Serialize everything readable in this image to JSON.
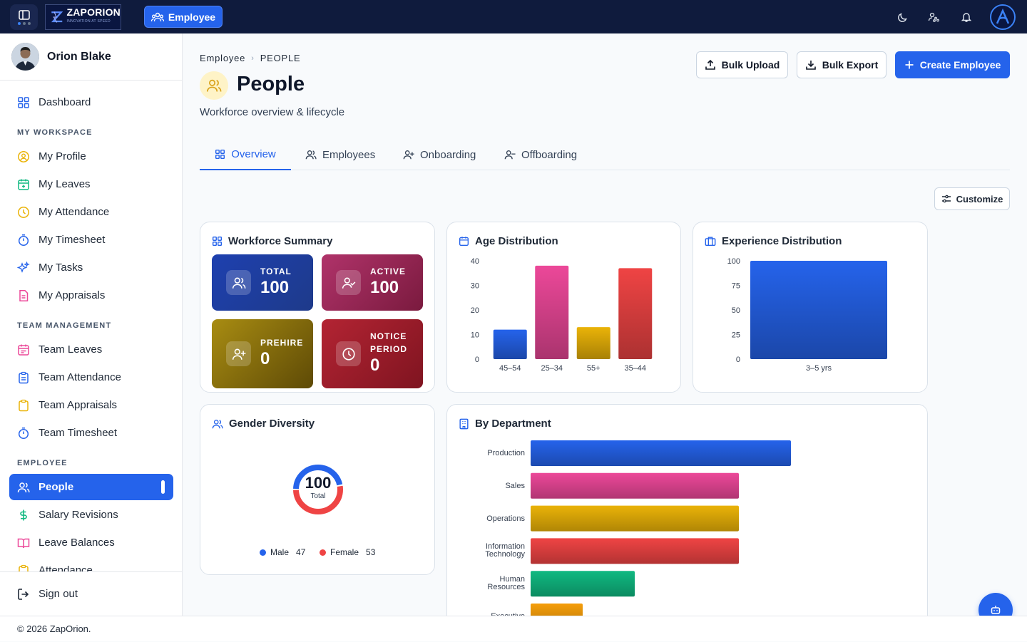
{
  "topbar": {
    "logo_text": "ZAPORION",
    "logo_tagline": "INNOVATION AT SPEED",
    "module_chip": "Employee",
    "icons": [
      "moon-icon",
      "user-nodes-icon",
      "bell-icon"
    ]
  },
  "sidebar": {
    "user_name": "Orion Blake",
    "dashboard": "Dashboard",
    "sections": [
      {
        "heading": "MY WORKSPACE",
        "items": [
          "My Profile",
          "My Leaves",
          "My Attendance",
          "My Timesheet",
          "My Tasks",
          "My Appraisals"
        ]
      },
      {
        "heading": "TEAM MANAGEMENT",
        "items": [
          "Team Leaves",
          "Team Attendance",
          "Team Appraisals",
          "Team Timesheet"
        ]
      },
      {
        "heading": "EMPLOYEE",
        "items": [
          "People",
          "Salary Revisions",
          "Leave Balances",
          "Attendance"
        ]
      }
    ],
    "active_item": "People",
    "sign_out": "Sign out"
  },
  "page": {
    "breadcrumb": [
      "Employee",
      "PEOPLE"
    ],
    "title": "People",
    "subtitle": "Workforce overview & lifecycle",
    "buttons": {
      "bulk_upload": "Bulk Upload",
      "bulk_export": "Bulk Export",
      "create": "Create Employee"
    },
    "tabs": [
      "Overview",
      "Employees",
      "Onboarding",
      "Offboarding"
    ],
    "active_tab": "Overview",
    "customize": "Customize"
  },
  "workforce_summary": {
    "title": "Workforce Summary",
    "tiles": [
      {
        "label": "TOTAL",
        "value": "100",
        "color": "#1e3a8a"
      },
      {
        "label": "ACTIVE",
        "value": "100",
        "color": "#9d2452"
      },
      {
        "label": "PREHIRE",
        "value": "0",
        "color": "#8a6d0b"
      },
      {
        "label": "NOTICE PERIOD",
        "label_line1": "NOTICE",
        "label_line2": "PERIOD",
        "value": "0",
        "color": "#9f1c2a"
      }
    ]
  },
  "gender": {
    "title": "Gender Diversity",
    "total_value": "100",
    "total_label": "Total",
    "male_label": "Male",
    "male_value": "47",
    "female_label": "Female",
    "female_value": "53",
    "male_color": "#2563eb",
    "female_color": "#ef4444"
  },
  "chart_data": [
    {
      "type": "bar",
      "title": "Age Distribution",
      "categories": [
        "45–54",
        "25–34",
        "55+",
        "35–44"
      ],
      "values": [
        12,
        38,
        13,
        37
      ],
      "ylim": [
        0,
        40
      ],
      "yticks": [
        "0",
        "10",
        "20",
        "30",
        "40"
      ],
      "colors": [
        "#2563eb",
        "#ec4899",
        "#eab308",
        "#ef4444"
      ],
      "xlabel": "",
      "ylabel": ""
    },
    {
      "type": "bar",
      "title": "Experience Distribution",
      "categories": [
        "3–5 yrs"
      ],
      "values": [
        100
      ],
      "ylim": [
        0,
        100
      ],
      "yticks": [
        "0",
        "25",
        "50",
        "75",
        "100"
      ],
      "colors": [
        "#2563eb"
      ],
      "xlabel": "",
      "ylabel": ""
    },
    {
      "type": "bar",
      "orientation": "horizontal",
      "title": "By Department",
      "categories": [
        "Production",
        "Sales",
        "Operations",
        "Information Technology",
        "Human Resources",
        "Executive"
      ],
      "values": [
        25,
        20,
        20,
        20,
        10,
        5
      ],
      "xlim": [
        0,
        30
      ],
      "colors": [
        "#2563eb",
        "#ec4899",
        "#eab308",
        "#ef4444",
        "#10b981",
        "#f59e0b"
      ]
    }
  ],
  "footer": "© 2026 ZapOrion."
}
